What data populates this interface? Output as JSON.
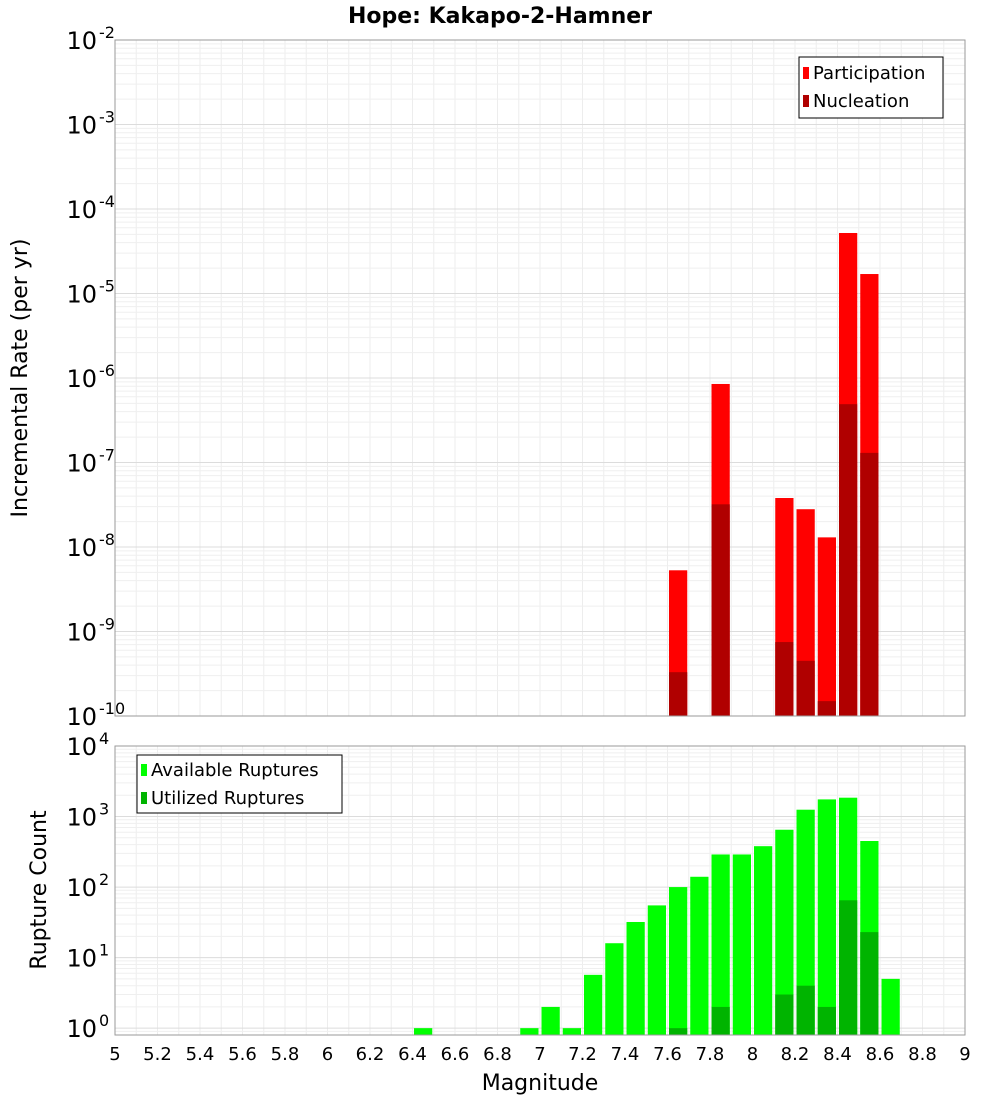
{
  "chart_data": [
    {
      "type": "bar",
      "title": "Hope: Kakapo-2-Hamner",
      "xlabel": "Magnitude",
      "ylabel": "Incremental Rate (per yr)",
      "yscale": "log",
      "xlim": [
        5,
        9
      ],
      "ylim": [
        1e-10,
        0.01
      ],
      "grid": true,
      "legend_position": "top-right",
      "bin_width": 0.1,
      "x": [
        7.65,
        7.85,
        8.15,
        8.25,
        8.35,
        8.45,
        8.55
      ],
      "series": [
        {
          "name": "Participation",
          "color": "#ff0000",
          "values": [
            5.3e-09,
            8.5e-07,
            3.8e-08,
            2.8e-08,
            1.3e-08,
            5.2e-05,
            1.7e-05
          ]
        },
        {
          "name": "Nucleation",
          "color": "#b00000",
          "values": [
            3.3e-10,
            3.2e-08,
            7.5e-10,
            4.5e-10,
            1.5e-10,
            4.9e-07,
            1.3e-07
          ]
        }
      ]
    },
    {
      "type": "bar",
      "xlabel": "Magnitude",
      "ylabel": "Rupture Count",
      "yscale": "log",
      "xlim": [
        5,
        9
      ],
      "ylim": [
        0.8,
        10000
      ],
      "grid": true,
      "legend_position": "top-left",
      "bin_width": 0.1,
      "series": [
        {
          "name": "Available Ruptures",
          "color": "#00ff00",
          "x": [
            6.45,
            6.95,
            7.05,
            7.15,
            7.25,
            7.35,
            7.45,
            7.55,
            7.65,
            7.75,
            7.85,
            7.95,
            8.05,
            8.15,
            8.25,
            8.35,
            8.45,
            8.55,
            8.65
          ],
          "values": [
            1,
            1,
            2,
            1,
            5.7,
            16,
            32,
            55,
            100,
            140,
            290,
            290,
            380,
            650,
            1250,
            1750,
            1850,
            450,
            5
          ]
        },
        {
          "name": "Utilized Ruptures",
          "color": "#00b400",
          "x": [
            7.65,
            7.85,
            8.15,
            8.25,
            8.35,
            8.45,
            8.55
          ],
          "values": [
            1,
            2,
            3,
            4,
            2,
            65,
            23
          ]
        }
      ]
    }
  ],
  "x_ticks": [
    "5",
    "5.2",
    "5.4",
    "5.6",
    "5.8",
    "6",
    "6.2",
    "6.4",
    "6.6",
    "6.8",
    "7",
    "7.2",
    "7.4",
    "7.6",
    "7.8",
    "8",
    "8.2",
    "8.4",
    "8.6",
    "8.8",
    "9"
  ],
  "top_y_ticks": [
    {
      "base": "10",
      "exp": "-2"
    },
    {
      "base": "10",
      "exp": "-3"
    },
    {
      "base": "10",
      "exp": "-4"
    },
    {
      "base": "10",
      "exp": "-5"
    },
    {
      "base": "10",
      "exp": "-6"
    },
    {
      "base": "10",
      "exp": "-7"
    },
    {
      "base": "10",
      "exp": "-8"
    },
    {
      "base": "10",
      "exp": "-9"
    },
    {
      "base": "10",
      "exp": "-10"
    }
  ],
  "bottom_y_ticks": [
    {
      "base": "10",
      "exp": "4"
    },
    {
      "base": "10",
      "exp": "3"
    },
    {
      "base": "10",
      "exp": "2"
    },
    {
      "base": "10",
      "exp": "1"
    },
    {
      "base": "10",
      "exp": "0"
    }
  ]
}
